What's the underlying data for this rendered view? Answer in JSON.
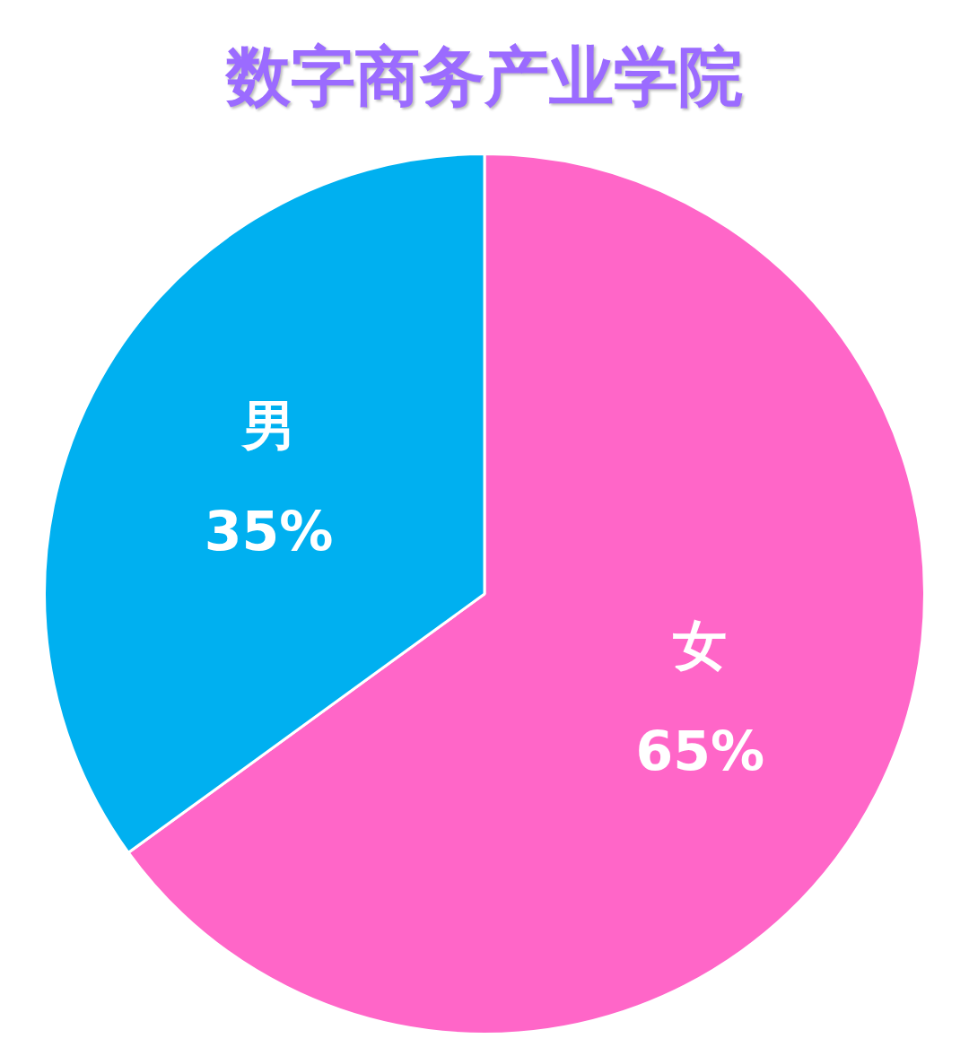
{
  "chart_data": {
    "type": "pie",
    "title": "数字商务产业学院",
    "categories": [
      "女",
      "男"
    ],
    "values": [
      65,
      35
    ],
    "value_labels": [
      "65%",
      "35%"
    ],
    "colors": [
      "#ff66c8",
      "#00b0f0"
    ],
    "legend": false
  }
}
